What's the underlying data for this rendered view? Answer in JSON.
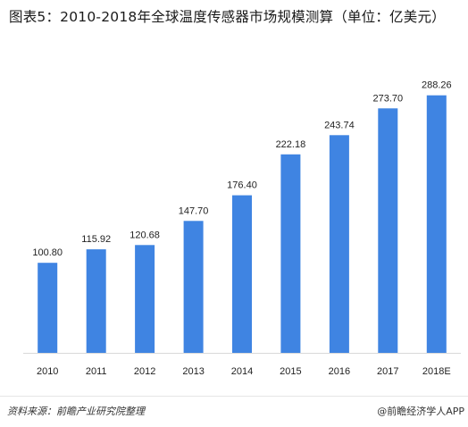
{
  "title": "图表5：2010-2018年全球温度传感器市场规模测算（单位：亿美元）",
  "source_text": "资料来源：前瞻产业研究院整理",
  "brand_text": "@前瞻经济学人APP",
  "colors": {
    "bar": "#3f84e2",
    "text": "#222222",
    "axis": "#d9d9d9"
  },
  "chart_data": {
    "type": "bar",
    "title": "图表5：2010-2018年全球温度传感器市场规模测算（单位：亿美元）",
    "categories": [
      "2010",
      "2011",
      "2012",
      "2013",
      "2014",
      "2015",
      "2016",
      "2017",
      "2018E"
    ],
    "values": [
      100.8,
      115.92,
      120.68,
      147.7,
      176.4,
      222.18,
      243.74,
      273.7,
      288.26
    ],
    "value_labels": [
      "100.80",
      "115.92",
      "120.68",
      "147.70",
      "176.40",
      "222.18",
      "243.74",
      "273.70",
      "288.26"
    ],
    "xlabel": "",
    "ylabel": "",
    "ylim": [
      0,
      300
    ],
    "grid": false,
    "legend": "none"
  }
}
